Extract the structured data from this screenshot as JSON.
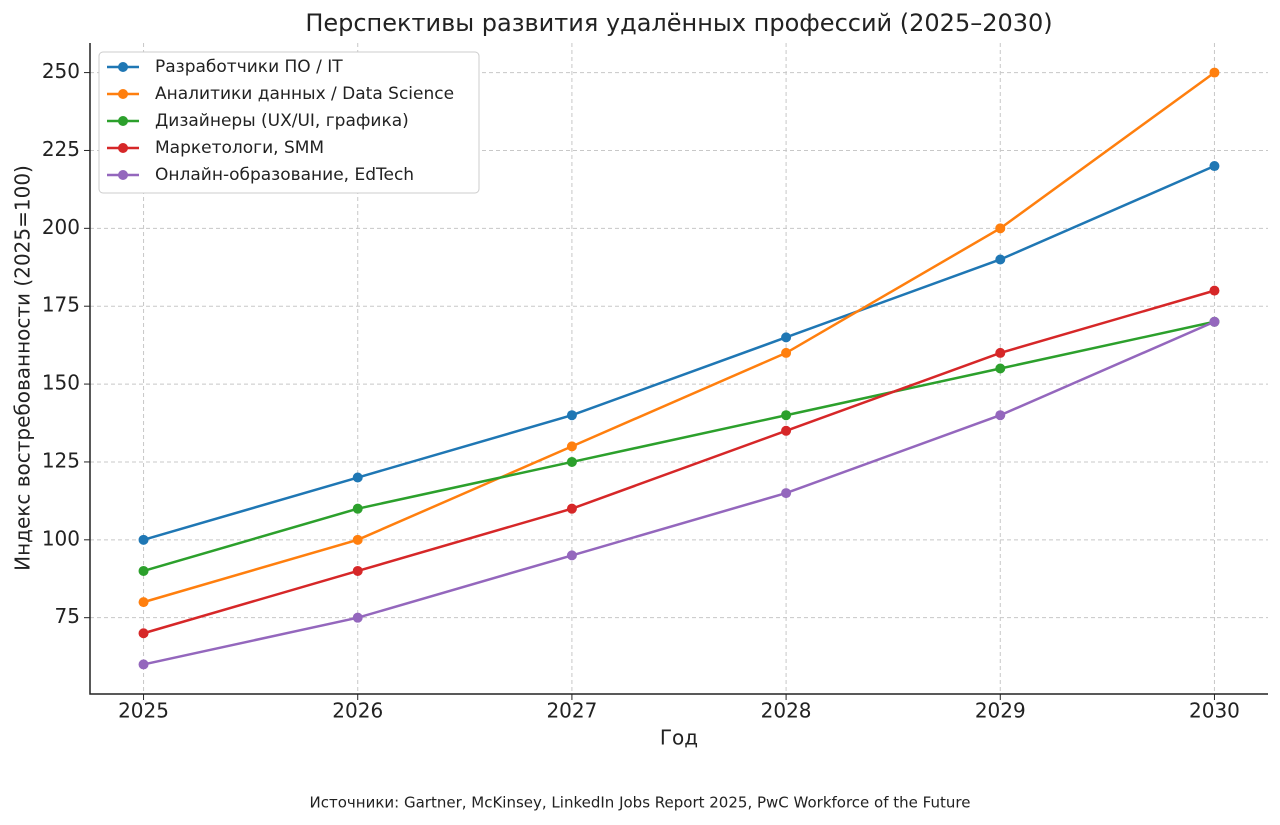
{
  "chart_data": {
    "type": "line",
    "title": "Перспективы развития удалённых профессий (2025–2030)",
    "xlabel": "Год",
    "ylabel": "Индекс востребованности (2025=100)",
    "source": "Источники: Gartner, McKinsey, LinkedIn Jobs Report 2025, PwC Workforce of the Future",
    "x": [
      2025,
      2026,
      2027,
      2028,
      2029,
      2030
    ],
    "xlim": [
      2024.75,
      2030.25
    ],
    "xticks": [
      2025,
      2026,
      2027,
      2028,
      2029,
      2030
    ],
    "ylim": [
      50.5,
      259.5
    ],
    "yticks": [
      75,
      100,
      125,
      150,
      175,
      200,
      225,
      250
    ],
    "grid": true,
    "legend": "upper-left",
    "series": [
      {
        "name": "Разработчики ПО / IT",
        "color": "#1f77b4",
        "values": [
          100,
          120,
          140,
          165,
          190,
          220
        ]
      },
      {
        "name": "Аналитики данных / Data Science",
        "color": "#ff7f0e",
        "values": [
          80,
          100,
          130,
          160,
          200,
          250
        ]
      },
      {
        "name": "Дизайнеры (UX/UI, графика)",
        "color": "#2ca02c",
        "values": [
          90,
          110,
          125,
          140,
          155,
          170
        ]
      },
      {
        "name": "Маркетологи, SMM",
        "color": "#d62728",
        "values": [
          70,
          90,
          110,
          135,
          160,
          180
        ]
      },
      {
        "name": "Онлайн-образование, EdTech",
        "color": "#9467bd",
        "values": [
          60,
          75,
          95,
          115,
          140,
          170
        ]
      }
    ]
  }
}
